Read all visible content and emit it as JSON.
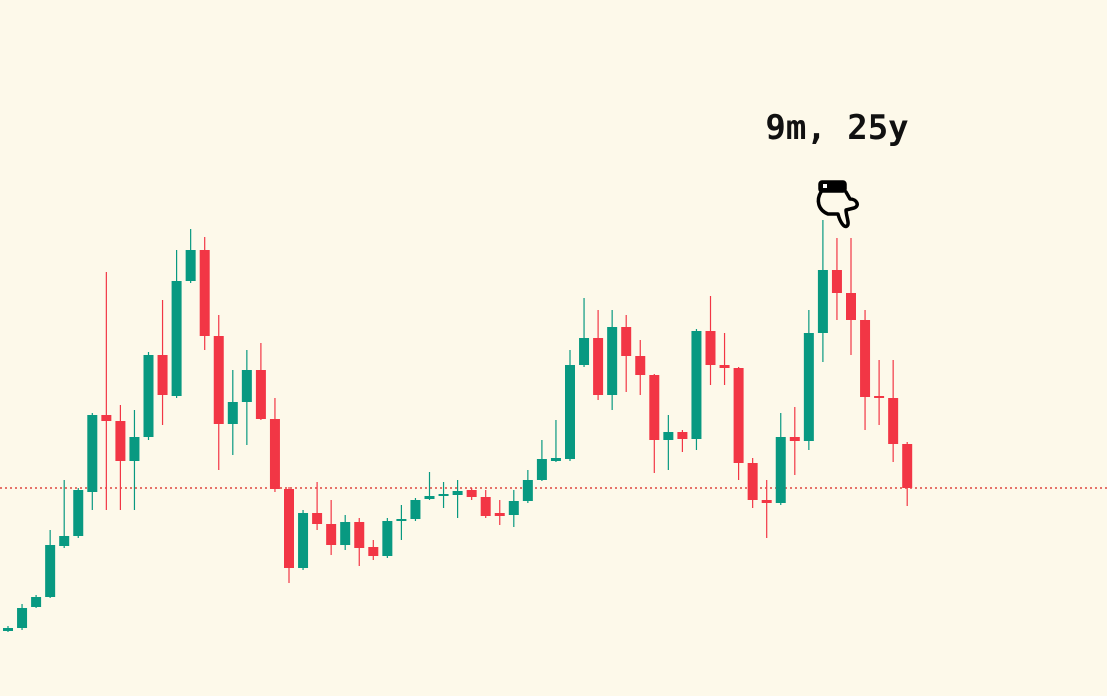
{
  "chart_data": {
    "type": "candlestick",
    "annotation": "9m, 25y",
    "up_color": "#089981",
    "down_color": "#f23645",
    "ylim": [
      0,
      696
    ],
    "reference_line": {
      "value": 208,
      "color": "#e0453f"
    },
    "open": [
      65,
      68,
      89,
      99,
      150,
      160,
      204,
      281,
      275,
      235,
      259,
      341,
      300,
      415,
      446,
      360,
      272,
      294,
      326,
      277,
      207,
      128,
      183,
      172,
      151,
      174,
      149,
      140,
      175,
      177,
      197,
      200,
      201,
      206,
      199,
      183,
      181,
      195,
      216,
      235,
      237,
      331,
      358,
      301,
      369,
      340,
      321,
      256,
      264,
      257,
      365,
      331,
      328,
      233,
      196,
      193,
      259,
      255,
      363,
      426,
      403,
      376,
      300,
      298,
      252
    ],
    "high": [
      70,
      92,
      101,
      166,
      216,
      208,
      283,
      424,
      291,
      286,
      344,
      396,
      446,
      467,
      459,
      381,
      326,
      346,
      353,
      298,
      209,
      186,
      214,
      196,
      181,
      178,
      156,
      178,
      191,
      198,
      224,
      214,
      216,
      208,
      206,
      196,
      206,
      226,
      256,
      276,
      346,
      398,
      386,
      386,
      381,
      356,
      322,
      281,
      266,
      367,
      400,
      363,
      329,
      238,
      216,
      283,
      289,
      386,
      476,
      458,
      458,
      386,
      336,
      336,
      254
    ],
    "low": [
      64,
      66,
      88,
      98,
      148,
      158,
      186,
      186,
      186,
      186,
      256,
      271,
      298,
      413,
      346,
      226,
      241,
      251,
      276,
      204,
      113,
      126,
      166,
      141,
      146,
      130,
      136,
      138,
      156,
      175,
      196,
      188,
      178,
      196,
      178,
      171,
      169,
      193,
      215,
      234,
      235,
      329,
      296,
      286,
      304,
      301,
      223,
      226,
      244,
      246,
      311,
      311,
      216,
      188,
      158,
      191,
      221,
      246,
      334,
      376,
      341,
      266,
      271,
      234,
      190
    ],
    "close": [
      68,
      88,
      99,
      151,
      160,
      206,
      281,
      275,
      235,
      259,
      341,
      301,
      415,
      446,
      360,
      272,
      294,
      326,
      277,
      207,
      128,
      183,
      172,
      151,
      174,
      148,
      140,
      175,
      177,
      196,
      200,
      202,
      205,
      199,
      180,
      180,
      195,
      216,
      237,
      238,
      331,
      358,
      301,
      369,
      340,
      321,
      256,
      264,
      257,
      365,
      331,
      328,
      233,
      196,
      193,
      259,
      255,
      363,
      426,
      403,
      376,
      299,
      298,
      252,
      208
    ]
  }
}
